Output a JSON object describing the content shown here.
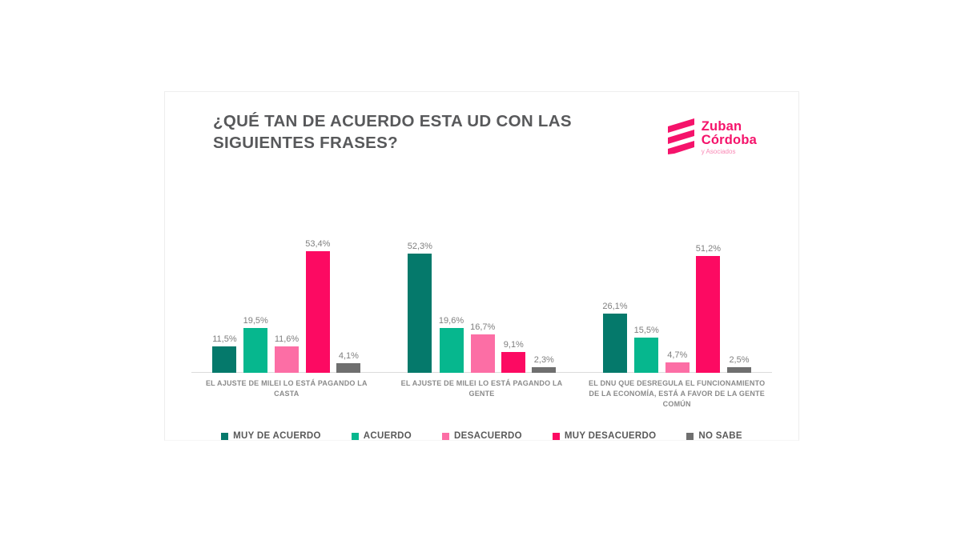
{
  "title": "¿QUÉ TAN DE ACUERDO ESTA UD CON LAS SIGUIENTES FRASES?",
  "logo": {
    "name_line1": "Zuban",
    "name_line2": "Córdoba",
    "subtitle": "y Asociados",
    "color": "#f5136b"
  },
  "chart_data": {
    "type": "bar",
    "subtype": "grouped",
    "title": "¿QUÉ TAN DE ACUERDO ESTA UD CON LAS SIGUIENTES FRASES?",
    "categories": [
      "EL AJUSTE DE MILEI LO ESTÁ PAGANDO LA CASTA",
      "EL AJUSTE DE MILEI LO ESTÁ PAGANDO LA GENTE",
      "EL DNU QUE DESREGULA EL FUNCIONAMIENTO DE LA ECONOMÍA, ESTÁ A FAVOR DE LA GENTE COMÚN"
    ],
    "series": [
      {
        "name": "MUY DE ACUERDO",
        "color": "#05796b",
        "values": [
          11.5,
          52.3,
          26.1
        ],
        "labels": [
          "11,5%",
          "52,3%",
          "26,1%"
        ]
      },
      {
        "name": "ACUERDO",
        "color": "#06b78e",
        "values": [
          19.5,
          19.6,
          15.5
        ],
        "labels": [
          "19,5%",
          "19,6%",
          "15,5%"
        ]
      },
      {
        "name": "DESACUERDO",
        "color": "#fc6ea5",
        "values": [
          11.6,
          16.7,
          4.7
        ],
        "labels": [
          "11,6%",
          "16,7%",
          "4,7%"
        ]
      },
      {
        "name": "MUY DESACUERDO",
        "color": "#fc0a62",
        "values": [
          53.4,
          9.1,
          51.2
        ],
        "labels": [
          "53,4%",
          "9,1%",
          "51,2%"
        ]
      },
      {
        "name": "NO SABE",
        "color": "#6f6f6f",
        "values": [
          4.1,
          2.3,
          2.5
        ],
        "labels": [
          "4,1%",
          "2,3%",
          "2,5%"
        ]
      }
    ],
    "xlabel": "",
    "ylabel": "",
    "ylim": [
      0,
      60
    ],
    "grid": false,
    "value_labels_shown": true,
    "legend_position": "bottom"
  }
}
